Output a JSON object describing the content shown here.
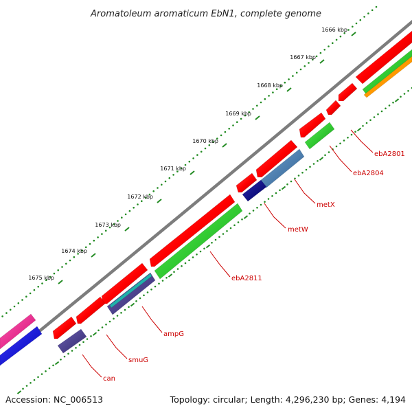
{
  "title": "Aromatoleum aromaticum EbN1, complete genome",
  "footer": {
    "accession": "Accession: NC_006513",
    "summary": "Topology: circular; Length: 4,296,230 bp; Genes: 4,194"
  },
  "scale_labels": [
    "1666 kbp",
    "1667 kbp",
    "1668 kbp",
    "1669 kbp",
    "1670 kbp",
    "1671 kbp",
    "1672 kbp",
    "1673 kbp",
    "1674 kbp",
    "1675 kbp"
  ],
  "gene_labels": [
    "ebA2801",
    "ebA2804",
    "metX",
    "metW",
    "ebA2811",
    "ampG",
    "smuG",
    "can"
  ],
  "colors": {
    "backbone": "#7d7d7d",
    "cds": "#ff0000",
    "gene": "#33cc33",
    "trna": "#4682b4",
    "navy": "#000080",
    "indigo": "#483d8b",
    "teal": "#20b2aa",
    "pink": "#ff1493",
    "blue": "#0000ff",
    "orange": "#ff9900",
    "ticks": "#228b22",
    "label_lines": "#cc0000"
  }
}
